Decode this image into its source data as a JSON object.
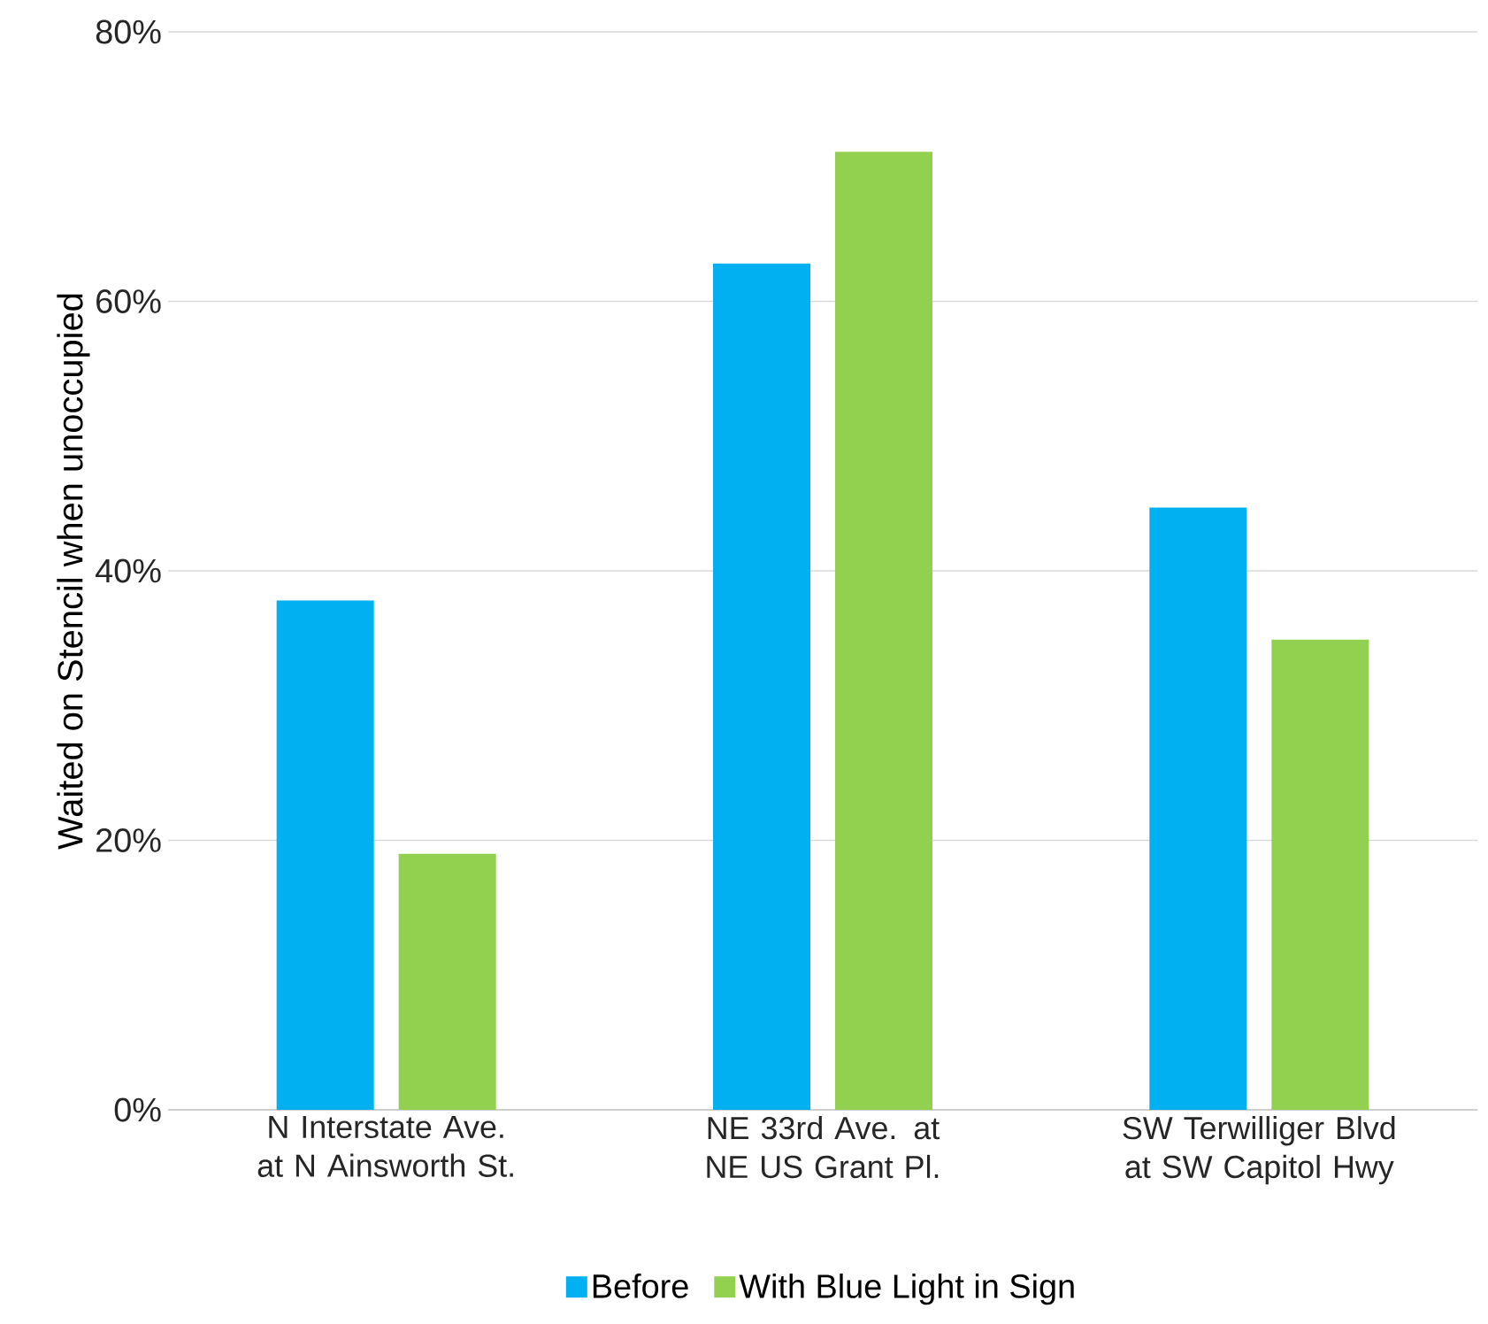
{
  "chart_data": {
    "type": "bar",
    "ylabel": "Waited on Stencil when unoccupied",
    "categories": [
      "N Interstate Ave. at N Ainsworth St.",
      "NE 33rd Ave. at NE US Grant Pl.",
      "SW Terwilliger Blvd at SW Capitol Hwy"
    ],
    "series": [
      {
        "name": "Before",
        "color": "#00b0f0",
        "values": [
          37.8,
          62.8,
          44.7
        ]
      },
      {
        "name": "With Blue Light in Sign",
        "color": "#92d050",
        "values": [
          19.0,
          71.1,
          34.9
        ]
      }
    ],
    "ylim": [
      0,
      80
    ],
    "yticks": [
      {
        "value": 0,
        "label": "0%"
      },
      {
        "value": 20,
        "label": "20%"
      },
      {
        "value": 40,
        "label": "40%"
      },
      {
        "value": 60,
        "label": "60%"
      },
      {
        "value": 80,
        "label": "80%"
      }
    ],
    "grid": "y",
    "legend": "bottom"
  }
}
